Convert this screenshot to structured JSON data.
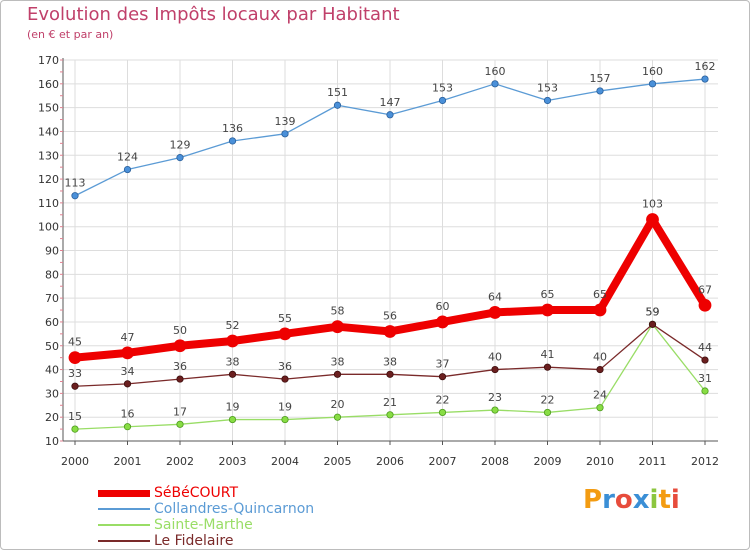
{
  "title": "Evolution des Impôts locaux par Habitant",
  "subtitle": "(en € et par an)",
  "logo": {
    "letters": [
      "P",
      "r",
      "o",
      "x",
      "i",
      "t",
      "i"
    ],
    "colors": [
      "#f39c12",
      "#3b8fd6",
      "#e74c3c",
      "#3b8fd6",
      "#8cc63f",
      "#f39c12",
      "#e74c3c"
    ]
  },
  "chart_data": {
    "type": "line",
    "title": "Evolution des Impôts locaux par Habitant",
    "subtitle": "(en € et par an)",
    "x": [
      "2000",
      "2001",
      "2002",
      "2003",
      "2004",
      "2005",
      "2006",
      "2007",
      "2008",
      "2009",
      "2010",
      "2011",
      "2012"
    ],
    "ylim": [
      10,
      170
    ],
    "yticks": [
      10,
      20,
      30,
      40,
      50,
      60,
      70,
      80,
      90,
      100,
      110,
      120,
      130,
      140,
      150,
      160,
      170
    ],
    "grid": true,
    "legend": "bottom-left",
    "series": [
      {
        "name": "SéBéCOURT",
        "color": "#ee0000",
        "values": [
          45,
          47,
          50,
          52,
          55,
          58,
          56,
          60,
          64,
          65,
          65,
          103,
          67
        ],
        "labels": [
          "45",
          "47",
          "50",
          "52",
          "55",
          "58",
          "56",
          "60",
          "64",
          "65",
          "65",
          "103",
          "67"
        ]
      },
      {
        "name": "Collandres-Quincarnon",
        "color": "#5b9bd5",
        "values": [
          113,
          124,
          129,
          136,
          139,
          151,
          147,
          153,
          160,
          153,
          157,
          160,
          162
        ],
        "labels": [
          "113",
          "124",
          "129",
          "136",
          "139",
          "151",
          "147",
          "153",
          "160",
          "153",
          "157",
          "160",
          "162"
        ]
      },
      {
        "name": "Sainte-Marthe",
        "color": "#99dd66",
        "values": [
          15,
          16,
          17,
          19,
          19,
          20,
          21,
          22,
          23,
          22,
          24,
          59,
          31
        ],
        "labels": [
          "15",
          "16",
          "17",
          "19",
          "19",
          "20",
          "21",
          "22",
          "23",
          "22",
          "24",
          "59",
          "31"
        ]
      },
      {
        "name": "Le Fidelaire",
        "color": "#7a2a2a",
        "values": [
          33,
          34,
          36,
          38,
          36,
          38,
          38,
          37,
          40,
          41,
          40,
          59,
          44
        ],
        "labels": [
          "33",
          "34",
          "36",
          "38",
          "36",
          "38",
          "38",
          "37",
          "40",
          "41",
          "40",
          "59",
          "44"
        ]
      }
    ]
  }
}
